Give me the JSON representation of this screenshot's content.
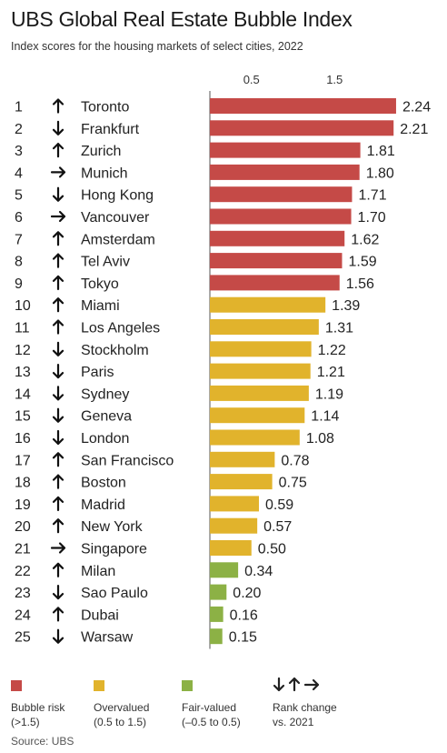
{
  "header": {
    "title": "UBS Global Real Estate Bubble Index",
    "subtitle": "Index scores for the housing markets of select cities, 2022"
  },
  "chart_data": {
    "type": "bar",
    "orientation": "horizontal",
    "title": "UBS Global Real Estate Bubble Index",
    "subtitle": "Index scores for the housing markets of select cities, 2022",
    "ticks": [
      0.5,
      1.5
    ],
    "xlim": [
      -0.5,
      2.3
    ],
    "grid": false,
    "colors": {
      "bubble": "#c54a47",
      "over": "#e1b32c",
      "fair": "#8cb145"
    },
    "rows": [
      {
        "rank": "1",
        "dir": "up",
        "city": "Toronto",
        "value": 2.24,
        "label": "2.24",
        "cat": "bubble"
      },
      {
        "rank": "2",
        "dir": "down",
        "city": "Frankfurt",
        "value": 2.21,
        "label": "2.21",
        "cat": "bubble"
      },
      {
        "rank": "3",
        "dir": "up",
        "city": "Zurich",
        "value": 1.81,
        "label": "1.81",
        "cat": "bubble"
      },
      {
        "rank": "4",
        "dir": "right",
        "city": "Munich",
        "value": 1.8,
        "label": "1.80",
        "cat": "bubble"
      },
      {
        "rank": "5",
        "dir": "down",
        "city": "Hong Kong",
        "value": 1.71,
        "label": "1.71",
        "cat": "bubble"
      },
      {
        "rank": "6",
        "dir": "right",
        "city": "Vancouver",
        "value": 1.7,
        "label": "1.70",
        "cat": "bubble"
      },
      {
        "rank": "7",
        "dir": "up",
        "city": "Amsterdam",
        "value": 1.62,
        "label": "1.62",
        "cat": "bubble"
      },
      {
        "rank": "8",
        "dir": "up",
        "city": "Tel Aviv",
        "value": 1.59,
        "label": "1.59",
        "cat": "bubble"
      },
      {
        "rank": "9",
        "dir": "up",
        "city": "Tokyo",
        "value": 1.56,
        "label": "1.56",
        "cat": "bubble"
      },
      {
        "rank": "10",
        "dir": "up",
        "city": "Miami",
        "value": 1.39,
        "label": "1.39",
        "cat": "over"
      },
      {
        "rank": "11",
        "dir": "up",
        "city": "Los Angeles",
        "value": 1.31,
        "label": "1.31",
        "cat": "over"
      },
      {
        "rank": "12",
        "dir": "down",
        "city": "Stockholm",
        "value": 1.22,
        "label": "1.22",
        "cat": "over"
      },
      {
        "rank": "13",
        "dir": "down",
        "city": "Paris",
        "value": 1.21,
        "label": "1.21",
        "cat": "over"
      },
      {
        "rank": "14",
        "dir": "down",
        "city": "Sydney",
        "value": 1.19,
        "label": "1.19",
        "cat": "over"
      },
      {
        "rank": "15",
        "dir": "down",
        "city": "Geneva",
        "value": 1.14,
        "label": "1.14",
        "cat": "over"
      },
      {
        "rank": "16",
        "dir": "down",
        "city": "London",
        "value": 1.08,
        "label": "1.08",
        "cat": "over"
      },
      {
        "rank": "17",
        "dir": "up",
        "city": "San Francisco",
        "value": 0.78,
        "label": "0.78",
        "cat": "over"
      },
      {
        "rank": "18",
        "dir": "up",
        "city": "Boston",
        "value": 0.75,
        "label": "0.75",
        "cat": "over"
      },
      {
        "rank": "19",
        "dir": "up",
        "city": "Madrid",
        "value": 0.59,
        "label": "0.59",
        "cat": "over"
      },
      {
        "rank": "20",
        "dir": "up",
        "city": "New York",
        "value": 0.57,
        "label": "0.57",
        "cat": "over"
      },
      {
        "rank": "21",
        "dir": "right",
        "city": "Singapore",
        "value": 0.5,
        "label": "0.50",
        "cat": "over"
      },
      {
        "rank": "22",
        "dir": "up",
        "city": "Milan",
        "value": 0.34,
        "label": "0.34",
        "cat": "fair"
      },
      {
        "rank": "23",
        "dir": "down",
        "city": "Sao Paulo",
        "value": 0.2,
        "label": "0.20",
        "cat": "fair"
      },
      {
        "rank": "24",
        "dir": "up",
        "city": "Dubai",
        "value": 0.16,
        "label": "0.16",
        "cat": "fair"
      },
      {
        "rank": "25",
        "dir": "down",
        "city": "Warsaw",
        "value": 0.15,
        "label": "0.15",
        "cat": "fair"
      }
    ]
  },
  "legend": {
    "bubble": {
      "line1": "Bubble risk",
      "line2": "(>1.5)"
    },
    "over": {
      "line1": "Overvalued",
      "line2": "(0.5 to 1.5)"
    },
    "fair": {
      "line1": "Fair-valued",
      "line2": "(–0.5 to 0.5)"
    },
    "rank": {
      "line1": "Rank change",
      "line2": "vs. 2021"
    }
  },
  "source": "Source: UBS"
}
